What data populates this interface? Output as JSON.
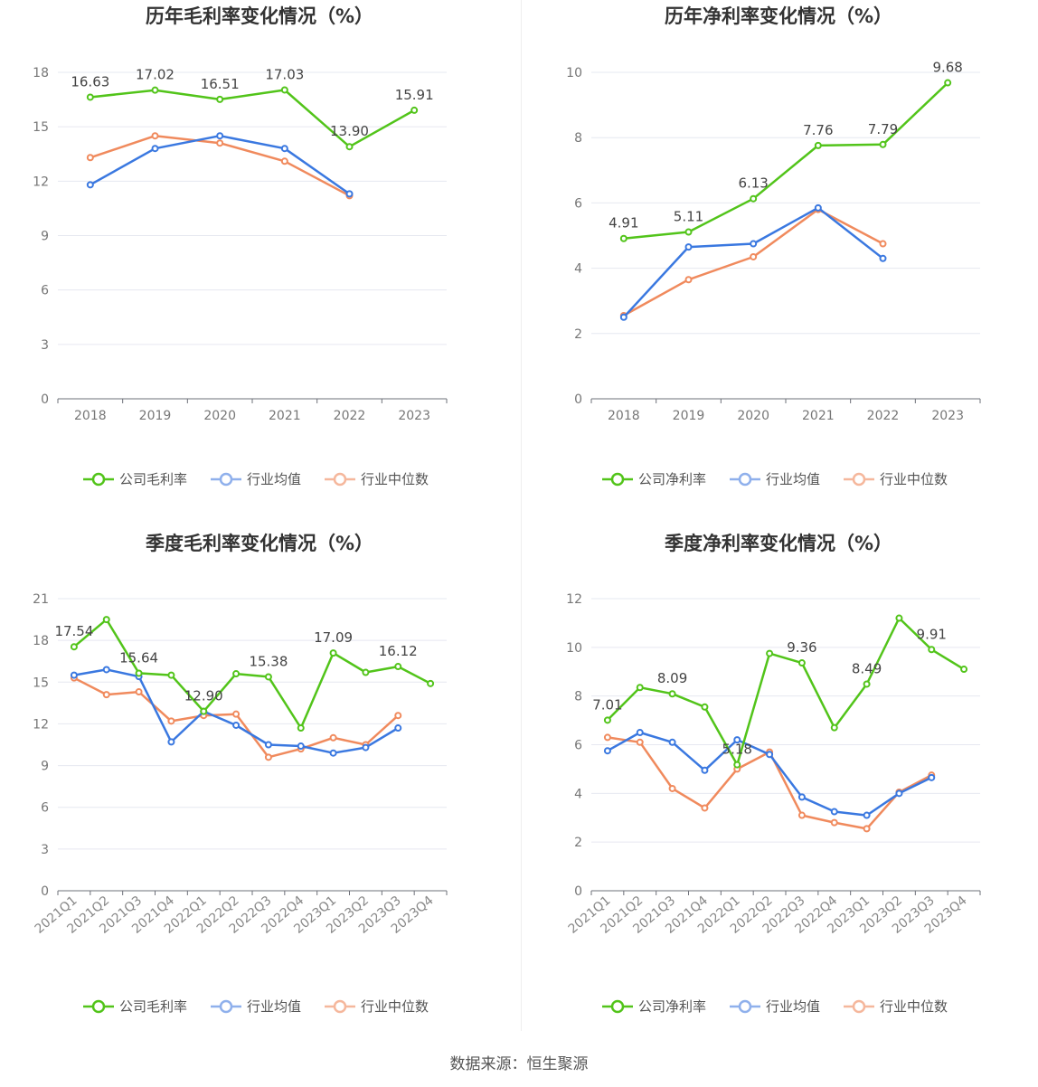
{
  "source": "数据来源：恒生聚源",
  "legend_labels": {
    "gross": [
      "公司毛利率",
      "行业均值",
      "行业中位数"
    ],
    "net": [
      "公司净利率",
      "行业均值",
      "行业中位数"
    ]
  },
  "colors": {
    "company": "#52c41a",
    "avg": "#3a78e0",
    "median": "#f08a5d"
  },
  "chart_data": [
    {
      "type": "line",
      "title": "历年毛利率变化情况（%）",
      "categories": [
        "2018",
        "2019",
        "2020",
        "2021",
        "2022",
        "2023"
      ],
      "ylim": [
        0,
        18
      ],
      "yticks": [
        0,
        3,
        6,
        9,
        12,
        15,
        18
      ],
      "grid": true,
      "legend": "bottom",
      "series": [
        {
          "name": "公司毛利率",
          "values": [
            16.63,
            17.02,
            16.51,
            17.03,
            13.9,
            15.91
          ]
        },
        {
          "name": "行业均值",
          "values": [
            11.8,
            13.8,
            14.5,
            13.8,
            11.3,
            null
          ]
        },
        {
          "name": "行业中位数",
          "values": [
            13.3,
            14.5,
            14.1,
            13.1,
            11.2,
            null
          ]
        }
      ],
      "data_labels": [
        "16.63",
        "17.02",
        "16.51",
        "17.03",
        "13.90",
        "15.91"
      ]
    },
    {
      "type": "line",
      "title": "历年净利率变化情况（%）",
      "categories": [
        "2018",
        "2019",
        "2020",
        "2021",
        "2022",
        "2023"
      ],
      "ylim": [
        0,
        10
      ],
      "yticks": [
        0,
        2,
        4,
        6,
        8,
        10
      ],
      "grid": true,
      "legend": "bottom",
      "series": [
        {
          "name": "公司净利率",
          "values": [
            4.91,
            5.11,
            6.13,
            7.76,
            7.79,
            9.68
          ]
        },
        {
          "name": "行业均值",
          "values": [
            2.5,
            4.65,
            4.75,
            5.85,
            4.3,
            null
          ]
        },
        {
          "name": "行业中位数",
          "values": [
            2.55,
            3.65,
            4.35,
            5.8,
            4.75,
            null
          ]
        }
      ],
      "data_labels": [
        "4.91",
        "5.11",
        "6.13",
        "7.76",
        "7.79",
        "9.68"
      ]
    },
    {
      "type": "line",
      "title": "季度毛利率变化情况（%）",
      "categories": [
        "2021Q1",
        "2021Q2",
        "2021Q3",
        "2021Q4",
        "2022Q1",
        "2022Q2",
        "2022Q3",
        "2022Q4",
        "2023Q1",
        "2023Q2",
        "2023Q3",
        "2023Q4"
      ],
      "ylim": [
        0,
        21
      ],
      "yticks": [
        0,
        3,
        6,
        9,
        12,
        15,
        18,
        21
      ],
      "grid": true,
      "legend": "bottom",
      "series": [
        {
          "name": "公司毛利率",
          "values": [
            17.54,
            19.5,
            15.64,
            15.5,
            12.9,
            15.6,
            15.38,
            11.7,
            17.09,
            15.7,
            16.12,
            14.9
          ]
        },
        {
          "name": "行业均值",
          "values": [
            15.5,
            15.9,
            15.4,
            10.7,
            12.9,
            11.9,
            10.5,
            10.4,
            9.9,
            10.3,
            11.7,
            null
          ]
        },
        {
          "name": "行业中位数",
          "values": [
            15.3,
            14.1,
            14.3,
            12.2,
            12.6,
            12.7,
            9.6,
            10.2,
            11.0,
            10.5,
            12.6,
            null
          ]
        }
      ],
      "data_labels": [
        "17.54",
        "",
        "15.64",
        "",
        "12.90",
        "",
        "15.38",
        "",
        "17.09",
        "",
        "16.12",
        ""
      ]
    },
    {
      "type": "line",
      "title": "季度净利率变化情况（%）",
      "categories": [
        "2021Q1",
        "2021Q2",
        "2021Q3",
        "2021Q4",
        "2022Q1",
        "2022Q2",
        "2022Q3",
        "2022Q4",
        "2023Q1",
        "2023Q2",
        "2023Q3",
        "2023Q4"
      ],
      "ylim": [
        0,
        12
      ],
      "yticks": [
        0,
        2,
        4,
        6,
        8,
        10,
        12
      ],
      "grid": true,
      "legend": "bottom",
      "series": [
        {
          "name": "公司净利率",
          "values": [
            7.01,
            8.35,
            8.09,
            7.55,
            5.18,
            9.75,
            9.36,
            6.7,
            8.49,
            11.2,
            9.91,
            9.1
          ]
        },
        {
          "name": "行业均值",
          "values": [
            5.75,
            6.5,
            6.1,
            4.95,
            6.2,
            5.6,
            3.85,
            3.25,
            3.1,
            4.0,
            4.65,
            null
          ]
        },
        {
          "name": "行业中位数",
          "values": [
            6.3,
            6.1,
            4.2,
            3.4,
            5.0,
            5.7,
            3.1,
            2.8,
            2.55,
            4.05,
            4.75,
            null
          ]
        }
      ],
      "data_labels": [
        "7.01",
        "",
        "8.09",
        "",
        "5.18",
        "",
        "9.36",
        "",
        "8.49",
        "",
        "9.91",
        ""
      ]
    }
  ]
}
